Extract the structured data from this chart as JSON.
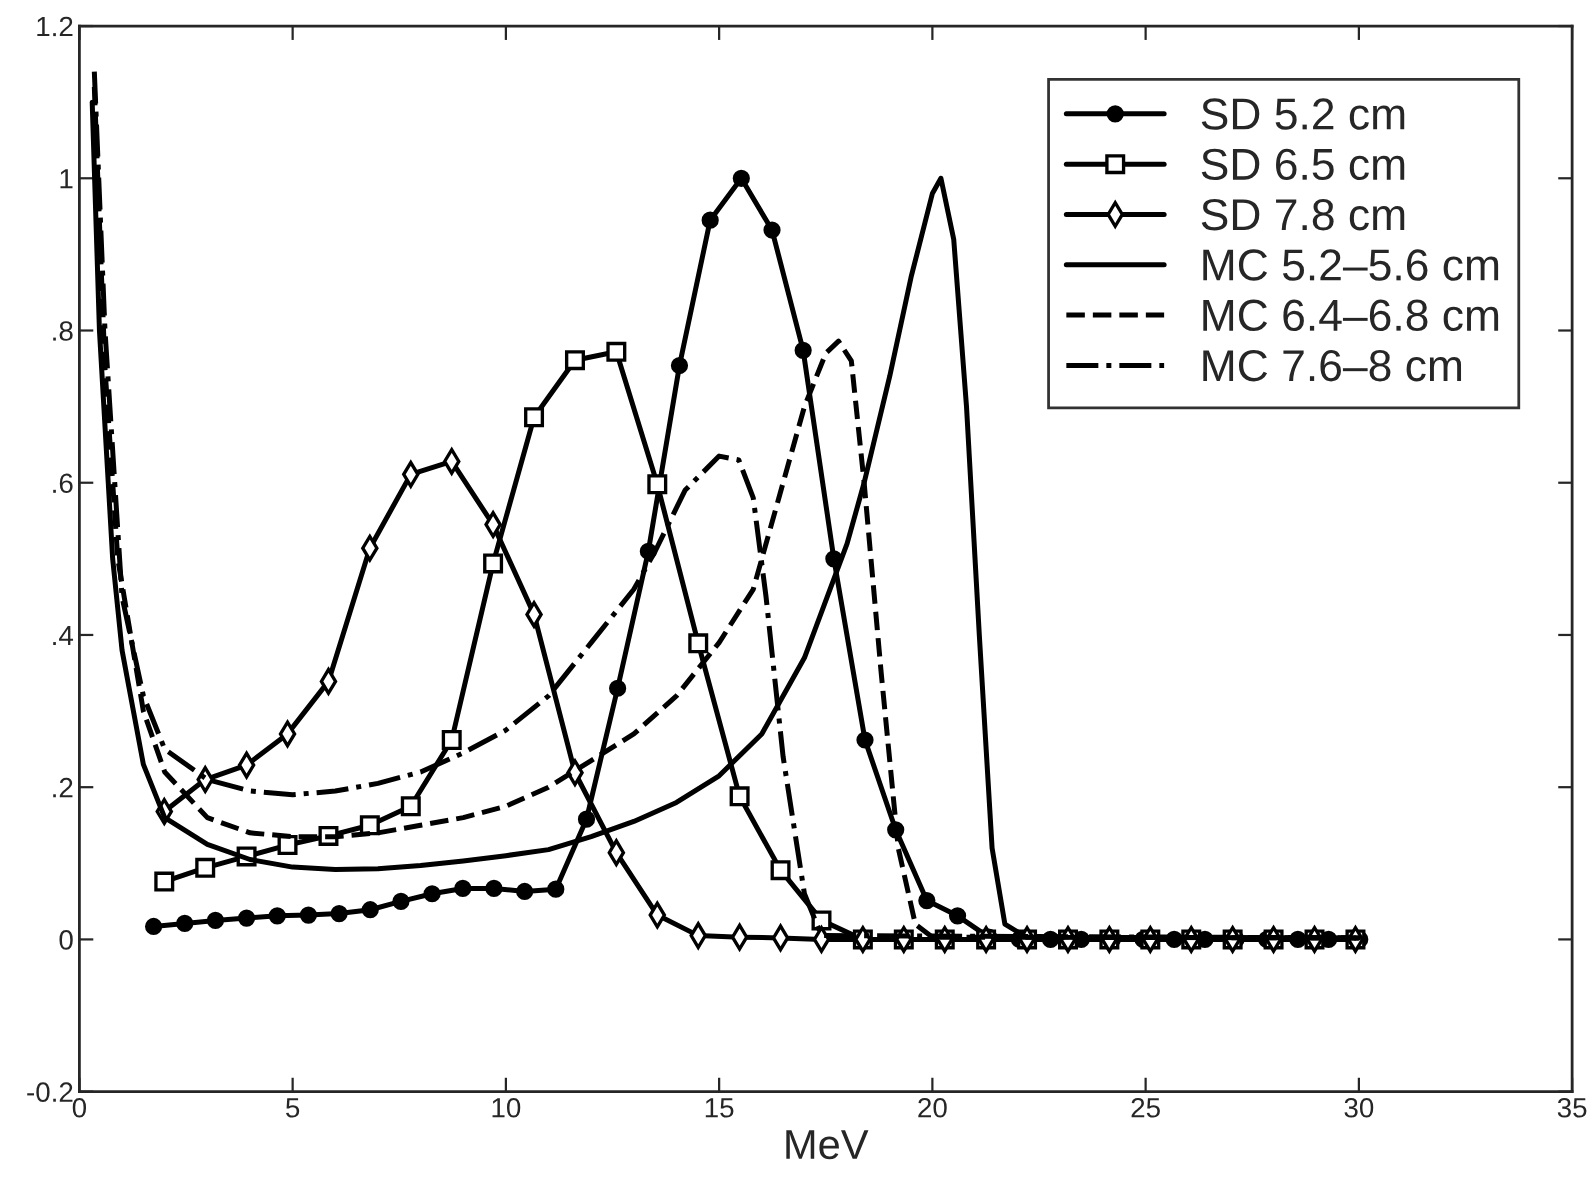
{
  "chart_data": {
    "type": "line",
    "xlabel": "MeV",
    "xlim": [
      0,
      35
    ],
    "xticks": [
      0,
      5,
      10,
      15,
      20,
      25,
      30,
      35
    ],
    "ylim": [
      -0.2,
      1.2
    ],
    "yticks": [
      {
        "value": -0.2,
        "label": "-0.2"
      },
      {
        "value": 0,
        "label": "0"
      },
      {
        "value": 0.2,
        "label": ".2"
      },
      {
        "value": 0.4,
        "label": ".4"
      },
      {
        "value": 0.6,
        "label": ".6"
      },
      {
        "value": 0.8,
        "label": ".8"
      },
      {
        "value": 1,
        "label": "1"
      },
      {
        "value": 1.2,
        "label": "1.2"
      }
    ],
    "grid": false,
    "legend": "top right",
    "series": [
      {
        "name": "SD 5.2 cm",
        "color": "#000000",
        "marker": "circle",
        "line_style": "solid",
        "x": [
          1.74,
          2.47,
          3.19,
          3.92,
          4.64,
          5.37,
          6.09,
          6.82,
          7.54,
          8.27,
          8.99,
          9.72,
          10.44,
          11.17,
          11.89,
          12.62,
          13.34,
          14.07,
          14.79,
          15.52,
          16.24,
          16.97,
          17.69,
          18.42,
          19.14,
          19.87,
          20.59,
          21.32,
          22.04,
          22.77,
          23.49,
          24.22,
          24.94,
          25.67,
          26.39,
          27.12,
          27.84,
          28.57,
          29.29,
          30.02
        ],
        "values": [
          0.017,
          0.021,
          0.025,
          0.028,
          0.031,
          0.032,
          0.034,
          0.039,
          0.05,
          0.06,
          0.067,
          0.067,
          0.063,
          0.066,
          0.158,
          0.33,
          0.51,
          0.754,
          0.945,
          1.0,
          0.932,
          0.774,
          0.5,
          0.262,
          0.144,
          0.051,
          0.031,
          0.003,
          0,
          0,
          0,
          0,
          0,
          0,
          0,
          0,
          0,
          0,
          0,
          0
        ]
      },
      {
        "name": "SD 6.5 cm",
        "color": "#000000",
        "marker": "square",
        "line_style": "solid",
        "x": [
          1.99,
          2.95,
          3.92,
          4.88,
          5.84,
          6.81,
          7.77,
          8.73,
          9.7,
          10.66,
          11.62,
          12.59,
          13.55,
          14.51,
          15.48,
          16.44,
          17.4,
          18.37,
          19.33,
          20.29,
          21.26,
          22.22,
          23.18,
          24.15,
          25.11,
          26.07,
          27.04,
          28.0,
          28.96,
          29.92
        ],
        "values": [
          0.076,
          0.094,
          0.109,
          0.124,
          0.136,
          0.15,
          0.175,
          0.262,
          0.494,
          0.686,
          0.761,
          0.772,
          0.598,
          0.389,
          0.188,
          0.091,
          0.025,
          0,
          0,
          0,
          0,
          0,
          0,
          0,
          0,
          0,
          0,
          0,
          0,
          0
        ]
      },
      {
        "name": "SD 7.8 cm",
        "color": "#000000",
        "marker": "diamond",
        "line_style": "solid",
        "x": [
          1.99,
          2.95,
          3.92,
          4.88,
          5.84,
          6.81,
          7.77,
          8.73,
          9.7,
          10.66,
          11.62,
          12.59,
          13.55,
          14.51,
          15.48,
          16.44,
          17.4,
          18.37,
          19.33,
          20.29,
          21.26,
          22.22,
          23.18,
          24.15,
          25.11,
          26.07,
          27.04,
          28.0,
          28.96,
          29.92
        ],
        "values": [
          0.168,
          0.21,
          0.229,
          0.27,
          0.339,
          0.514,
          0.611,
          0.628,
          0.545,
          0.427,
          0.219,
          0.114,
          0.032,
          0.005,
          0.003,
          0.002,
          0,
          0,
          0,
          0,
          0,
          0,
          0,
          0,
          0,
          0,
          0,
          0,
          0,
          0
        ]
      },
      {
        "name": "MC 5.2–5.6 cm",
        "color": "#000000",
        "marker": "none",
        "line_style": "solid",
        "x": [
          0.3,
          0.47,
          0.78,
          1.0,
          1.5,
          2,
          3,
          4,
          5,
          6,
          7,
          8,
          9,
          10,
          11,
          12,
          13,
          14,
          15,
          16,
          17,
          18,
          18.4,
          19,
          19.5,
          20,
          20.2,
          20.5,
          20.8,
          21.1,
          21.4,
          21.7,
          22.2,
          30
        ],
        "values": [
          1.1,
          0.8,
          0.5,
          0.38,
          0.23,
          0.16,
          0.125,
          0.105,
          0.095,
          0.092,
          0.093,
          0.097,
          0.103,
          0.11,
          0.118,
          0.135,
          0.155,
          0.18,
          0.215,
          0.27,
          0.37,
          0.52,
          0.6,
          0.74,
          0.87,
          0.98,
          1.0,
          0.92,
          0.7,
          0.4,
          0.12,
          0.02,
          0.003,
          0.002
        ]
      },
      {
        "name": "MC 6.4–6.8 cm",
        "color": "#000000",
        "marker": "none",
        "line_style": "dashed",
        "x": [
          0.35,
          0.6,
          0.9,
          1.5,
          2,
          3,
          4,
          5,
          6,
          7,
          8,
          9,
          10,
          11,
          12,
          13,
          14,
          15,
          15.8,
          16.4,
          17,
          17.5,
          17.8,
          18.1,
          18.4,
          18.8,
          19.2,
          19.6,
          20,
          30
        ],
        "values": [
          1.12,
          0.75,
          0.5,
          0.3,
          0.22,
          0.16,
          0.14,
          0.135,
          0.135,
          0.14,
          0.15,
          0.16,
          0.175,
          0.2,
          0.235,
          0.27,
          0.32,
          0.39,
          0.46,
          0.58,
          0.7,
          0.77,
          0.786,
          0.76,
          0.6,
          0.35,
          0.12,
          0.02,
          0.003,
          0.002
        ]
      },
      {
        "name": "MC 7.6–8 cm",
        "color": "#000000",
        "marker": "none",
        "line_style": "dashdot",
        "x": [
          0.35,
          0.6,
          1,
          1.5,
          2,
          3,
          4,
          5,
          6,
          7,
          8,
          9,
          10,
          11,
          12,
          13,
          13.5,
          14.2,
          15,
          15.46,
          15.8,
          16.1,
          16.5,
          17,
          17.4,
          30
        ],
        "values": [
          1.14,
          0.8,
          0.45,
          0.32,
          0.25,
          0.21,
          0.195,
          0.19,
          0.195,
          0.205,
          0.22,
          0.245,
          0.275,
          0.32,
          0.39,
          0.46,
          0.51,
          0.59,
          0.635,
          0.63,
          0.58,
          0.45,
          0.24,
          0.06,
          0.005,
          0.002
        ]
      }
    ]
  }
}
